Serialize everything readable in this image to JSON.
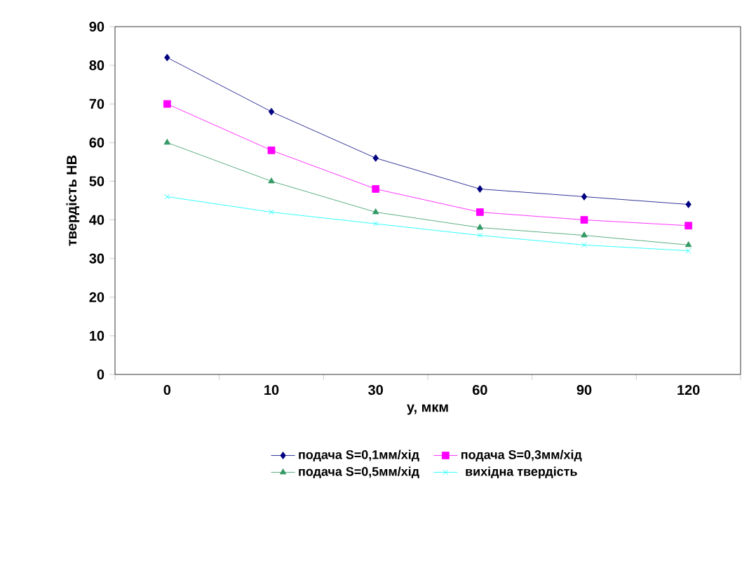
{
  "chart_data": {
    "type": "line",
    "xlabel": "y, мкм",
    "ylabel": "твердість НВ",
    "categories": [
      "0",
      "10",
      "30",
      "60",
      "90",
      "120"
    ],
    "series": [
      {
        "name": "подача S=0,1мм/хід",
        "color": "#000080",
        "marker": "diamond",
        "values": [
          82,
          68,
          56,
          48,
          46,
          44
        ]
      },
      {
        "name": "подача S=0,3мм/хід",
        "color": "#ff00ff",
        "marker": "square",
        "values": [
          70,
          58,
          48,
          42,
          40,
          38.5
        ]
      },
      {
        "name": "подача S=0,5мм/хід",
        "color": "#339966",
        "marker": "triangle",
        "values": [
          60,
          50,
          42,
          38,
          36,
          33.5
        ]
      },
      {
        "name": "вихідна твердість",
        "color": "#00ffff",
        "marker": "cross",
        "values": [
          46,
          42,
          39,
          36,
          33.5,
          32
        ]
      }
    ],
    "ylim": [
      0,
      90
    ],
    "yticks": [
      0,
      10,
      20,
      30,
      40,
      50,
      60,
      70,
      80,
      90
    ],
    "grid": false,
    "legend": "bottom"
  }
}
